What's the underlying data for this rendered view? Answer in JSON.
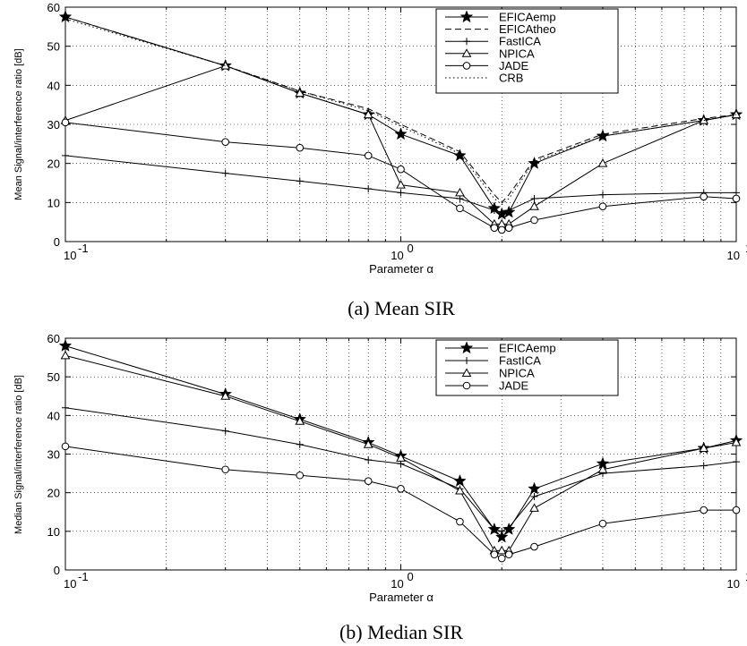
{
  "figure": {
    "panels": [
      {
        "caption": "(a) Mean SIR",
        "xlabel": "Parameter α",
        "ylabel": "Mean Signal/interference ratio [dB]",
        "xtick_bases": [
          "10",
          "10",
          "10"
        ],
        "xtick_exps": [
          "-1",
          "0",
          "1"
        ],
        "ytick_labels": [
          "0",
          "10",
          "20",
          "30",
          "40",
          "50",
          "60"
        ]
      },
      {
        "caption": "(b) Median SIR",
        "xlabel": "Parameter α",
        "ylabel": "Median Signal/interference ratio [dB]",
        "xtick_bases": [
          "10",
          "10",
          "10"
        ],
        "xtick_exps": [
          "-1",
          "0",
          "1"
        ],
        "ytick_labels": [
          "0",
          "10",
          "20",
          "30",
          "40",
          "50",
          "60"
        ]
      }
    ]
  },
  "chart_data": [
    {
      "type": "line",
      "title": "",
      "xlabel": "Parameter α",
      "ylabel": "Mean Signal/interference ratio [dB]",
      "xscale": "log",
      "xlim": [
        0.1,
        10
      ],
      "ylim": [
        0,
        60
      ],
      "grid": true,
      "legend_position": "top-right",
      "series": [
        {
          "name": "EFICAemp",
          "style": "solid-star",
          "x": [
            0.1,
            0.3,
            0.5,
            0.8,
            1.0,
            1.5,
            1.9,
            2.0,
            2.1,
            2.5,
            4,
            8,
            10
          ],
          "y": [
            57.5,
            45,
            38,
            32.5,
            27.5,
            22,
            8.5,
            7,
            7.5,
            20,
            27,
            31,
            32.5
          ]
        },
        {
          "name": "EFICAtheo",
          "style": "dashed",
          "x": [
            0.1,
            0.3,
            0.5,
            0.8,
            1.0,
            1.5,
            1.9,
            2.0,
            2.1,
            2.5,
            4,
            8,
            10
          ],
          "y": [
            57.5,
            45,
            38.5,
            34,
            30,
            23,
            12,
            10,
            12,
            21,
            27.5,
            31.5,
            32.5
          ]
        },
        {
          "name": "FastICA",
          "style": "solid-plus",
          "x": [
            0.1,
            0.3,
            0.5,
            0.8,
            1.0,
            1.5,
            1.9,
            2.0,
            2.1,
            2.5,
            4,
            8,
            10
          ],
          "y": [
            22,
            17.5,
            15.5,
            13.5,
            12.5,
            11,
            8,
            7.5,
            8,
            11,
            12,
            12.5,
            12.5
          ]
        },
        {
          "name": "NPICA",
          "style": "solid-triangle",
          "x": [
            0.1,
            0.3,
            0.5,
            0.8,
            1.0,
            1.5,
            1.9,
            2.0,
            2.1,
            2.5,
            4,
            8,
            10
          ],
          "y": [
            31,
            45,
            38,
            32.5,
            14.5,
            12.5,
            4.5,
            4.5,
            4.5,
            9,
            20,
            31,
            32.5
          ]
        },
        {
          "name": "JADE",
          "style": "solid-circle",
          "x": [
            0.1,
            0.3,
            0.5,
            0.8,
            1.0,
            1.5,
            1.9,
            2.0,
            2.1,
            2.5,
            4,
            8,
            10
          ],
          "y": [
            30.5,
            25.5,
            24,
            22,
            18.5,
            8.5,
            3.5,
            3,
            3.5,
            5.5,
            9,
            11.5,
            11
          ]
        },
        {
          "name": "CRB",
          "style": "dotted",
          "x": [
            0.1,
            0.3,
            0.5,
            0.8,
            1.0,
            1.5,
            1.9,
            2.0,
            2.1,
            2.5,
            4,
            8,
            10
          ],
          "y": [
            57,
            45,
            38.5,
            33.5,
            29.5,
            22.5,
            11,
            9.5,
            11,
            20.5,
            27,
            31,
            32.5
          ]
        }
      ]
    },
    {
      "type": "line",
      "title": "",
      "xlabel": "Parameter α",
      "ylabel": "Median Signal/interference ratio [dB]",
      "xscale": "log",
      "xlim": [
        0.1,
        10
      ],
      "ylim": [
        0,
        60
      ],
      "grid": true,
      "legend_position": "top-right",
      "series": [
        {
          "name": "EFICAemp",
          "style": "solid-star",
          "x": [
            0.1,
            0.3,
            0.5,
            0.8,
            1.0,
            1.5,
            1.9,
            2.0,
            2.1,
            2.5,
            4,
            8,
            10
          ],
          "y": [
            58,
            45.5,
            39,
            33,
            29.5,
            23,
            10.5,
            8.5,
            10.5,
            21,
            27.5,
            31.5,
            33.5
          ]
        },
        {
          "name": "FastICA",
          "style": "solid-plus",
          "x": [
            0.1,
            0.3,
            0.5,
            0.8,
            1.0,
            1.5,
            1.9,
            2.0,
            2.1,
            2.5,
            4,
            8,
            10
          ],
          "y": [
            42,
            36,
            32.5,
            28.5,
            27.5,
            21,
            10.5,
            10,
            11,
            19,
            25,
            27,
            28
          ]
        },
        {
          "name": "NPICA",
          "style": "solid-triangle",
          "x": [
            0.1,
            0.3,
            0.5,
            0.8,
            1.0,
            1.5,
            1.9,
            2.0,
            2.1,
            2.5,
            4,
            8,
            10
          ],
          "y": [
            55.5,
            45,
            38.5,
            32.5,
            29,
            20.5,
            5,
            5,
            5,
            16,
            26,
            31.5,
            33
          ]
        },
        {
          "name": "JADE",
          "style": "solid-circle",
          "x": [
            0.1,
            0.3,
            0.5,
            0.8,
            1.0,
            1.5,
            1.9,
            2.0,
            2.1,
            2.5,
            4,
            8,
            10
          ],
          "y": [
            32,
            26,
            24.5,
            23,
            21,
            12.5,
            4,
            3,
            4,
            6,
            12,
            15.5,
            15.5
          ]
        }
      ]
    }
  ]
}
